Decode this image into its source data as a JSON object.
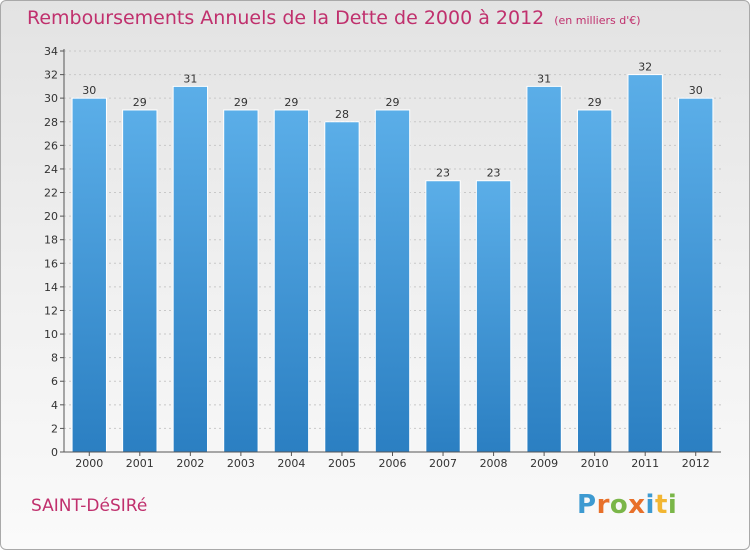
{
  "title": "Remboursements Annuels de la Dette de 2000 à 2012",
  "unit": "(en milliers d'€)",
  "place": "SAINT-DéSIRé",
  "logo": {
    "letters": [
      "P",
      "r",
      "o",
      "x",
      "i",
      "t",
      "i"
    ],
    "colors": [
      "#3d9ad1",
      "#e8702a",
      "#7ab648",
      "#e8702a",
      "#3d9ad1",
      "#f2b632",
      "#7ab648"
    ]
  },
  "colors": {
    "title": "#c0306d",
    "bar_top": "#5baee8",
    "bar_bottom": "#2b7fc2",
    "axis": "#555555",
    "grid": "#c8c8c8"
  },
  "chart_data": {
    "type": "bar",
    "title": "Remboursements Annuels de la Dette de 2000 à 2012",
    "subtitle": "(en milliers d'€)",
    "xlabel": "",
    "ylabel": "",
    "categories": [
      "2000",
      "2001",
      "2002",
      "2003",
      "2004",
      "2005",
      "2006",
      "2007",
      "2008",
      "2009",
      "2010",
      "2011",
      "2012"
    ],
    "values": [
      30,
      29,
      31,
      29,
      29,
      28,
      29,
      23,
      23,
      31,
      29,
      32,
      30
    ],
    "ylim": [
      0,
      34
    ],
    "yticks": [
      0,
      2,
      4,
      6,
      8,
      10,
      12,
      14,
      16,
      18,
      20,
      22,
      24,
      26,
      28,
      30,
      32,
      34
    ],
    "grid": true,
    "legend": "none"
  }
}
